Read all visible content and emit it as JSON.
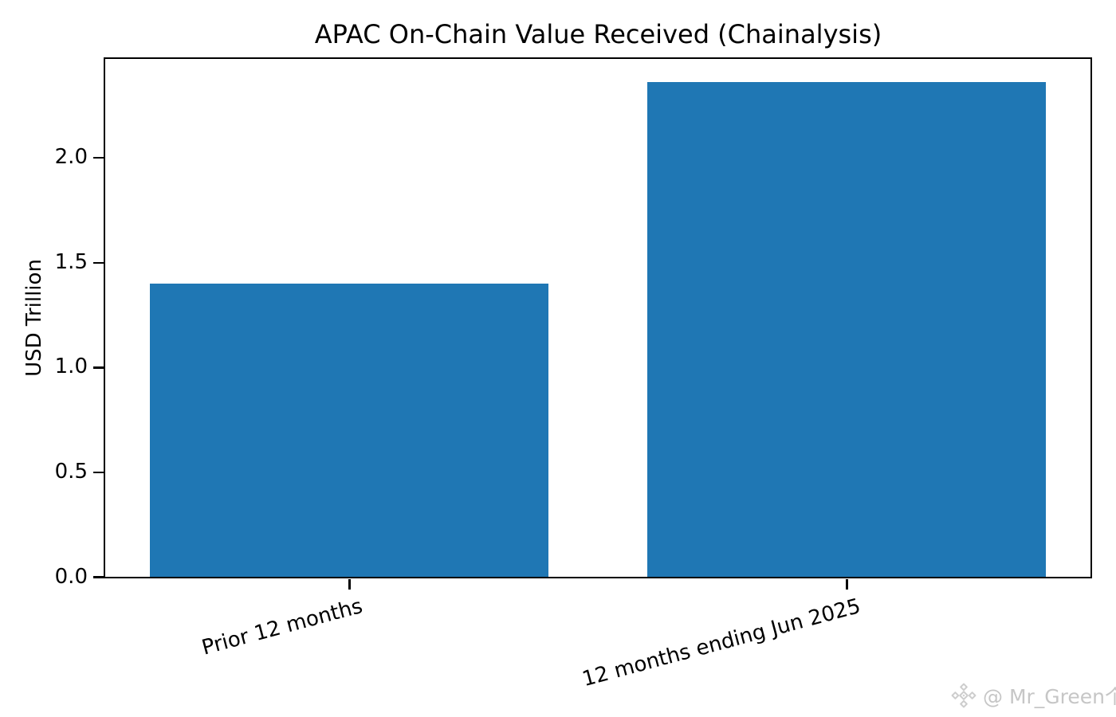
{
  "chart_data": {
    "type": "bar",
    "title": "APAC On-Chain Value Received (Chainalysis)",
    "categories": [
      "Prior 12 months",
      "12 months ending Jun 2025"
    ],
    "values": [
      1.4,
      2.36
    ],
    "xlabel": "",
    "ylabel": "USD Trillion",
    "ylim": [
      0,
      2.47
    ],
    "yticks": [
      0.0,
      0.5,
      1.0,
      1.5,
      2.0
    ],
    "ytick_labels": [
      "0.0",
      "0.5",
      "1.0",
      "1.5",
      "2.0"
    ],
    "xtick_label_rotation_deg": 15,
    "bar_color": "#1f77b4",
    "grid": false,
    "legend_position": "none"
  },
  "watermark": {
    "icon": "binance-diamond-logo",
    "text": "@ Mr_Green个",
    "color": "#c6c6c6"
  }
}
